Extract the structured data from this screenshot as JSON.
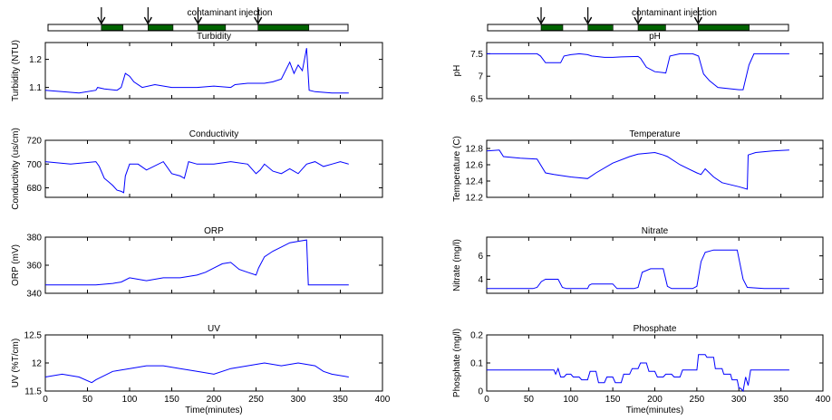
{
  "injection_bar": {
    "label": "contaminant injection",
    "injections": [
      {
        "start": 64,
        "end": 90
      },
      {
        "start": 120,
        "end": 150
      },
      {
        "start": 180,
        "end": 213
      },
      {
        "start": 252,
        "end": 313
      }
    ],
    "colors": {
      "pulse": "#006400",
      "track": "#ffffff"
    }
  },
  "chart_data": [
    {
      "type": "line",
      "title": "Turbidity",
      "xlabel": "",
      "ylabel": "Turbidity (NTU)",
      "xlim": [
        0,
        400
      ],
      "ylim": [
        1.06,
        1.26
      ],
      "yticks": [
        1.1,
        1.2
      ],
      "ytick_labels": [
        "1.1",
        "1.2"
      ],
      "xtick_labels": [],
      "color": "#0000ff",
      "x": [
        0,
        20,
        40,
        60,
        62,
        70,
        85,
        90,
        95,
        100,
        105,
        115,
        130,
        150,
        180,
        200,
        220,
        225,
        240,
        260,
        270,
        280,
        290,
        295,
        300,
        305,
        310,
        313,
        320,
        340,
        360
      ],
      "y": [
        1.09,
        1.085,
        1.08,
        1.09,
        1.1,
        1.095,
        1.09,
        1.1,
        1.15,
        1.14,
        1.12,
        1.1,
        1.11,
        1.1,
        1.1,
        1.105,
        1.1,
        1.11,
        1.115,
        1.115,
        1.12,
        1.13,
        1.19,
        1.15,
        1.18,
        1.16,
        1.24,
        1.09,
        1.085,
        1.08,
        1.08
      ]
    },
    {
      "type": "line",
      "title": "Conductivity",
      "xlabel": "",
      "ylabel": "Conductivity (us/cm)",
      "xlim": [
        0,
        400
      ],
      "ylim": [
        672,
        720
      ],
      "yticks": [
        680,
        700,
        720
      ],
      "ytick_labels": [
        "680",
        "700",
        "720"
      ],
      "xtick_labels": [],
      "color": "#0000ff",
      "x": [
        0,
        30,
        60,
        64,
        70,
        75,
        80,
        85,
        90,
        93,
        95,
        100,
        110,
        120,
        140,
        150,
        160,
        165,
        170,
        180,
        200,
        220,
        240,
        250,
        255,
        260,
        270,
        280,
        290,
        300,
        310,
        320,
        330,
        340,
        350,
        360
      ],
      "y": [
        702,
        700,
        702,
        698,
        688,
        685,
        682,
        678,
        677,
        676,
        690,
        700,
        700,
        695,
        702,
        692,
        690,
        688,
        702,
        700,
        700,
        702,
        700,
        692,
        695,
        700,
        694,
        692,
        696,
        692,
        700,
        702,
        698,
        700,
        702,
        700
      ]
    },
    {
      "type": "line",
      "title": "ORP",
      "xlabel": "",
      "ylabel": "ORP (mV)",
      "xlim": [
        0,
        400
      ],
      "ylim": [
        340,
        380
      ],
      "yticks": [
        340,
        360,
        380
      ],
      "ytick_labels": [
        "340",
        "360",
        "380"
      ],
      "xtick_labels": [],
      "color": "#0000ff",
      "x": [
        0,
        30,
        60,
        80,
        90,
        100,
        110,
        120,
        140,
        160,
        180,
        190,
        200,
        210,
        220,
        230,
        240,
        250,
        253,
        260,
        270,
        280,
        290,
        300,
        310,
        312,
        320,
        340,
        360
      ],
      "y": [
        346,
        346,
        346,
        347,
        348,
        351,
        350,
        349,
        351,
        351,
        353,
        355,
        358,
        361,
        362,
        357,
        355,
        353,
        358,
        366,
        370,
        373,
        376,
        377,
        378,
        346,
        346,
        346,
        346
      ]
    },
    {
      "type": "line",
      "title": "UV",
      "xlabel": "Time(minutes)",
      "ylabel": "UV (%T/cm)",
      "xlim": [
        0,
        400
      ],
      "ylim": [
        11.5,
        12.5
      ],
      "yticks": [
        11.5,
        12,
        12.5
      ],
      "ytick_labels": [
        "11.5",
        "12",
        "12.5"
      ],
      "xticks": [
        0,
        50,
        100,
        150,
        200,
        250,
        300,
        350,
        400
      ],
      "xtick_labels": [
        "0",
        "50",
        "100",
        "150",
        "200",
        "250",
        "300",
        "350",
        "400"
      ],
      "color": "#0000ff",
      "x": [
        0,
        20,
        40,
        55,
        60,
        80,
        100,
        120,
        140,
        160,
        180,
        200,
        220,
        240,
        260,
        280,
        300,
        320,
        330,
        340,
        360
      ],
      "y": [
        11.75,
        11.8,
        11.75,
        11.65,
        11.7,
        11.85,
        11.9,
        11.95,
        11.95,
        11.9,
        11.85,
        11.8,
        11.9,
        11.95,
        12,
        11.95,
        12,
        11.95,
        11.85,
        11.8,
        11.75
      ]
    },
    {
      "type": "line",
      "title": "pH",
      "xlabel": "",
      "ylabel": "pH",
      "xlim": [
        0,
        400
      ],
      "ylim": [
        6.5,
        7.75
      ],
      "yticks": [
        6.5,
        7,
        7.5
      ],
      "ytick_labels": [
        "6.5",
        "7",
        "7.5"
      ],
      "xtick_labels": [],
      "color": "#0000ff",
      "x": [
        0,
        60,
        64,
        70,
        80,
        88,
        92,
        100,
        110,
        120,
        125,
        140,
        150,
        160,
        180,
        183,
        190,
        200,
        210,
        213,
        218,
        230,
        245,
        252,
        258,
        265,
        275,
        290,
        300,
        305,
        312,
        318,
        330,
        360
      ],
      "y": [
        7.5,
        7.5,
        7.45,
        7.3,
        7.3,
        7.3,
        7.45,
        7.48,
        7.5,
        7.48,
        7.45,
        7.42,
        7.42,
        7.43,
        7.44,
        7.4,
        7.2,
        7.1,
        7.08,
        7.07,
        7.45,
        7.5,
        7.5,
        7.45,
        7.05,
        6.9,
        6.75,
        6.72,
        6.7,
        6.7,
        7.25,
        7.5,
        7.5,
        7.5
      ]
    },
    {
      "type": "line",
      "title": "Temperature",
      "xlabel": "",
      "ylabel": "Temperature (C)",
      "xlim": [
        0,
        400
      ],
      "ylim": [
        12.2,
        12.9
      ],
      "yticks": [
        12.2,
        12.4,
        12.6,
        12.8
      ],
      "ytick_labels": [
        "12.2",
        "12.4",
        "12.6",
        "12.8"
      ],
      "xtick_labels": [],
      "color": "#0000ff",
      "x": [
        0,
        15,
        20,
        40,
        60,
        64,
        70,
        80,
        100,
        120,
        130,
        150,
        170,
        180,
        200,
        210,
        215,
        230,
        250,
        255,
        260,
        270,
        280,
        300,
        310,
        311,
        320,
        340,
        360
      ],
      "y": [
        12.77,
        12.78,
        12.7,
        12.68,
        12.67,
        12.6,
        12.5,
        12.48,
        12.45,
        12.43,
        12.5,
        12.62,
        12.7,
        12.73,
        12.75,
        12.72,
        12.7,
        12.6,
        12.5,
        12.48,
        12.55,
        12.45,
        12.38,
        12.33,
        12.3,
        12.72,
        12.75,
        12.77,
        12.78
      ]
    },
    {
      "type": "line",
      "title": "Nitrate",
      "xlabel": "",
      "ylabel": "Nitrate (mg/l)",
      "xlim": [
        0,
        400
      ],
      "ylim": [
        2.8,
        7.6
      ],
      "yticks": [
        4,
        6
      ],
      "ytick_labels": [
        "4",
        "6"
      ],
      "xtick_labels": [],
      "color": "#0000ff",
      "x": [
        0,
        55,
        60,
        65,
        70,
        85,
        90,
        95,
        120,
        122,
        125,
        150,
        155,
        175,
        180,
        185,
        195,
        210,
        215,
        220,
        245,
        250,
        255,
        260,
        270,
        290,
        298,
        305,
        310,
        330,
        360
      ],
      "y": [
        3.2,
        3.2,
        3.3,
        3.8,
        4.0,
        4.0,
        3.3,
        3.2,
        3.2,
        3.5,
        3.6,
        3.6,
        3.2,
        3.2,
        3.3,
        4.6,
        4.9,
        4.9,
        3.4,
        3.2,
        3.2,
        3.4,
        5.5,
        6.3,
        6.5,
        6.5,
        6.5,
        4.0,
        3.3,
        3.2,
        3.2
      ]
    },
    {
      "type": "line",
      "title": "Phosphate",
      "xlabel": "Time(minutes)",
      "ylabel": "Phosphate (mg/l)",
      "xlim": [
        0,
        400
      ],
      "ylim": [
        0,
        0.2
      ],
      "yticks": [
        0,
        0.1,
        0.2
      ],
      "ytick_labels": [
        "0",
        "0.1",
        "0.2"
      ],
      "xticks": [
        0,
        50,
        100,
        150,
        200,
        250,
        300,
        350,
        400
      ],
      "xtick_labels": [
        "0",
        "50",
        "100",
        "150",
        "200",
        "250",
        "300",
        "350",
        "400"
      ],
      "color": "#0000ff",
      "x": [
        0,
        80,
        82,
        85,
        88,
        92,
        95,
        100,
        103,
        110,
        113,
        120,
        123,
        130,
        133,
        140,
        143,
        150,
        153,
        160,
        163,
        170,
        173,
        180,
        183,
        190,
        193,
        200,
        203,
        210,
        213,
        220,
        223,
        230,
        233,
        250,
        252,
        260,
        262,
        270,
        272,
        280,
        282,
        290,
        292,
        298,
        300,
        302,
        305,
        308,
        311,
        314,
        360
      ],
      "y": [
        0.075,
        0.075,
        0.06,
        0.08,
        0.05,
        0.05,
        0.06,
        0.06,
        0.05,
        0.05,
        0.04,
        0.04,
        0.07,
        0.07,
        0.03,
        0.03,
        0.05,
        0.05,
        0.03,
        0.03,
        0.06,
        0.06,
        0.08,
        0.08,
        0.1,
        0.1,
        0.07,
        0.07,
        0.05,
        0.05,
        0.06,
        0.06,
        0.05,
        0.05,
        0.075,
        0.075,
        0.13,
        0.13,
        0.12,
        0.12,
        0.08,
        0.08,
        0.06,
        0.06,
        0.04,
        0.04,
        0.01,
        0.01,
        0.0,
        0.05,
        0.02,
        0.075,
        0.075
      ]
    }
  ]
}
